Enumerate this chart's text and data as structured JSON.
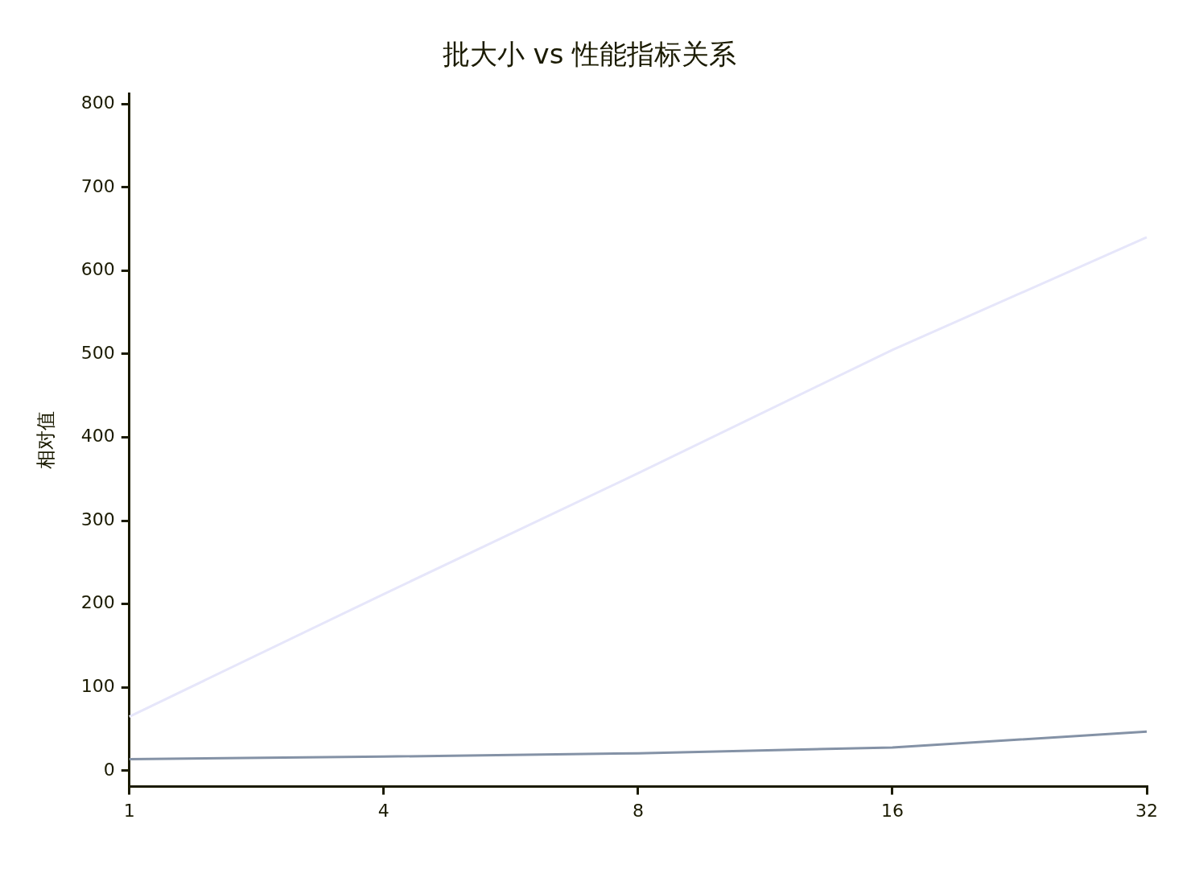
{
  "chart_data": {
    "type": "line",
    "title": "批大小 vs 性能指标关系",
    "ylabel": "相对值",
    "categories": [
      "1",
      "4",
      "8",
      "16",
      "32"
    ],
    "series": [
      {
        "color": "#e6e6fa",
        "values": [
          65,
          212,
          357,
          505,
          640
        ]
      },
      {
        "color": "#8492a6",
        "values": [
          14,
          17,
          21,
          28,
          47
        ]
      }
    ],
    "ylim": [
      -19,
      812
    ],
    "yticks": [
      0,
      100,
      200,
      300,
      400,
      500,
      600,
      700,
      800
    ],
    "grid": false,
    "legend": false,
    "marker": "none",
    "line_style": "solid"
  }
}
